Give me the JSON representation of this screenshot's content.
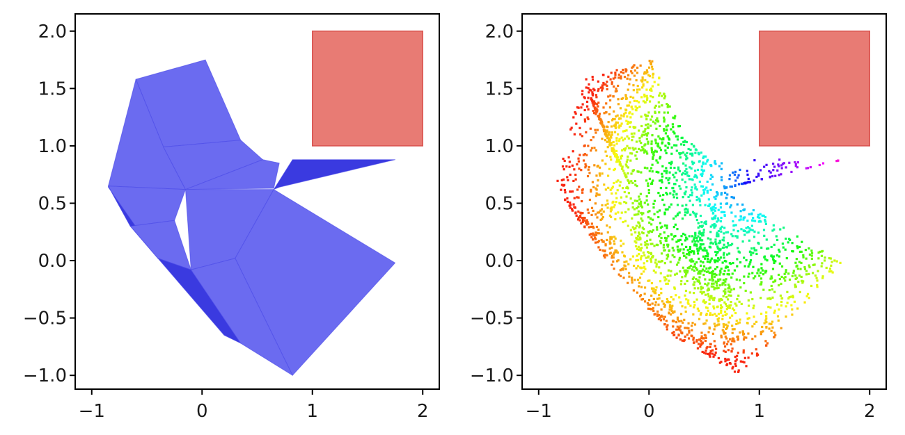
{
  "chart_data": [
    {
      "type": "area",
      "title": "",
      "xlabel": "",
      "ylabel": "",
      "xlim": [
        -1.15,
        2.15
      ],
      "ylim": [
        -1.12,
        2.15
      ],
      "grid": false,
      "xticks": [
        -1,
        0,
        1,
        2
      ],
      "xtick_labels": [
        "−1",
        "0",
        "1",
        "2"
      ],
      "yticks": [
        -1.0,
        -0.5,
        0.0,
        0.5,
        1.0,
        1.5,
        2.0
      ],
      "ytick_labels": [
        "−1.0",
        "−0.5",
        "0.0",
        "0.5",
        "1.0",
        "1.5",
        "2.0"
      ],
      "surface_color": "#6b6bf0",
      "edge_color": "#4a4ae8",
      "dark_color": "#3a3ae0",
      "facets": [
        {
          "points": [
            [
              -0.6,
              1.58
            ],
            [
              0.03,
              1.75
            ],
            [
              0.35,
              1.05
            ],
            [
              -0.35,
              0.99
            ]
          ],
          "tone": "light"
        },
        {
          "points": [
            [
              -0.6,
              1.58
            ],
            [
              -0.35,
              0.99
            ],
            [
              -0.15,
              0.62
            ],
            [
              -0.85,
              0.65
            ]
          ],
          "tone": "light"
        },
        {
          "points": [
            [
              -0.35,
              0.99
            ],
            [
              0.35,
              1.05
            ],
            [
              0.55,
              0.88
            ],
            [
              -0.15,
              0.62
            ]
          ],
          "tone": "light"
        },
        {
          "points": [
            [
              -0.15,
              0.62
            ],
            [
              0.55,
              0.88
            ],
            [
              0.7,
              0.85
            ],
            [
              0.65,
              0.63
            ]
          ],
          "tone": "light"
        },
        {
          "points": [
            [
              0.65,
              0.62
            ],
            [
              0.82,
              0.88
            ],
            [
              1.75,
              0.88
            ],
            [
              0.7,
              0.64
            ]
          ],
          "tone": "dark"
        },
        {
          "points": [
            [
              -0.85,
              0.65
            ],
            [
              -0.15,
              0.62
            ],
            [
              -0.25,
              0.35
            ],
            [
              -0.65,
              0.3
            ]
          ],
          "tone": "light"
        },
        {
          "points": [
            [
              -0.15,
              0.62
            ],
            [
              0.65,
              0.62
            ],
            [
              0.3,
              0.02
            ],
            [
              -0.1,
              -0.08
            ]
          ],
          "tone": "light"
        },
        {
          "points": [
            [
              -0.85,
              0.65
            ],
            [
              -0.65,
              0.3
            ],
            [
              -0.4,
              0.02
            ],
            [
              -0.85,
              0.64
            ]
          ],
          "tone": "dark"
        },
        {
          "points": [
            [
              -0.65,
              0.3
            ],
            [
              -0.25,
              0.35
            ],
            [
              -0.1,
              -0.08
            ],
            [
              -0.4,
              0.02
            ]
          ],
          "tone": "light"
        },
        {
          "points": [
            [
              0.65,
              0.62
            ],
            [
              1.75,
              -0.02
            ],
            [
              0.82,
              -1.0
            ],
            [
              0.3,
              0.02
            ]
          ],
          "tone": "light"
        },
        {
          "points": [
            [
              -0.4,
              0.02
            ],
            [
              -0.1,
              -0.08
            ],
            [
              0.35,
              -0.72
            ],
            [
              0.2,
              -0.65
            ]
          ],
          "tone": "dark"
        },
        {
          "points": [
            [
              -0.1,
              -0.08
            ],
            [
              0.3,
              0.02
            ],
            [
              0.82,
              -1.0
            ],
            [
              0.35,
              -0.72
            ]
          ],
          "tone": "light"
        }
      ],
      "inset_rect": {
        "x": [
          1.0,
          2.0
        ],
        "y": [
          1.0,
          2.0
        ],
        "color": "#e87b74",
        "edge": "#d9534f"
      }
    },
    {
      "type": "scatter",
      "title": "",
      "xlabel": "",
      "ylabel": "",
      "xlim": [
        -1.15,
        2.15
      ],
      "ylim": [
        -1.12,
        2.15
      ],
      "grid": false,
      "xticks": [
        -1,
        0,
        1,
        2
      ],
      "xtick_labels": [
        "−1",
        "0",
        "1",
        "2"
      ],
      "yticks": [
        -1.0,
        -0.5,
        0.0,
        0.5,
        1.0,
        1.5,
        2.0
      ],
      "ytick_labels": [
        "−1.0",
        "−0.5",
        "0.0",
        "0.5",
        "1.0",
        "1.5",
        "2.0"
      ],
      "colormap": "gist_rainbow",
      "point_count": 2600,
      "region_facets": [
        [
          [
            -0.6,
            1.58
          ],
          [
            0.03,
            1.75
          ],
          [
            0.35,
            1.05
          ],
          [
            -0.35,
            0.99
          ]
        ],
        [
          [
            -0.6,
            1.58
          ],
          [
            -0.35,
            0.99
          ],
          [
            -0.15,
            0.62
          ],
          [
            -0.85,
            0.65
          ]
        ],
        [
          [
            -0.35,
            0.99
          ],
          [
            0.35,
            1.05
          ],
          [
            0.55,
            0.88
          ],
          [
            -0.15,
            0.62
          ]
        ],
        [
          [
            -0.15,
            0.62
          ],
          [
            0.55,
            0.88
          ],
          [
            0.7,
            0.85
          ],
          [
            0.65,
            0.63
          ]
        ],
        [
          [
            0.65,
            0.62
          ],
          [
            0.82,
            0.88
          ],
          [
            1.75,
            0.88
          ],
          [
            0.7,
            0.64
          ]
        ],
        [
          [
            -0.85,
            0.65
          ],
          [
            -0.15,
            0.62
          ],
          [
            -0.1,
            -0.08
          ],
          [
            -0.4,
            0.02
          ]
        ],
        [
          [
            -0.15,
            0.62
          ],
          [
            0.65,
            0.62
          ],
          [
            0.3,
            0.02
          ],
          [
            -0.1,
            -0.08
          ]
        ],
        [
          [
            0.65,
            0.62
          ],
          [
            1.75,
            -0.02
          ],
          [
            0.82,
            -1.0
          ],
          [
            0.3,
            0.02
          ]
        ],
        [
          [
            -0.4,
            0.02
          ],
          [
            -0.1,
            -0.08
          ],
          [
            0.35,
            -0.72
          ],
          [
            0.2,
            -0.65
          ]
        ],
        [
          [
            -0.1,
            -0.08
          ],
          [
            0.3,
            0.02
          ],
          [
            0.82,
            -1.0
          ],
          [
            0.35,
            -0.72
          ]
        ]
      ],
      "color_anchor": [
        0.85,
        0.7
      ],
      "inset_rect": {
        "x": [
          1.0,
          2.0
        ],
        "y": [
          1.0,
          2.0
        ],
        "color": "#e87b74",
        "edge": "#d9534f"
      }
    }
  ]
}
